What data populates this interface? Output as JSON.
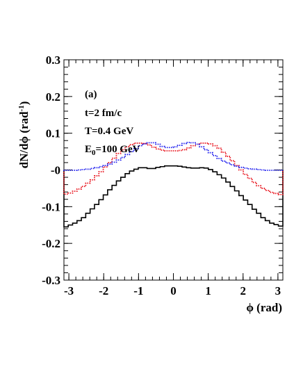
{
  "chart_data": {
    "type": "line",
    "panel_label": "(a)",
    "annotations": {
      "time": "t=2 fm/c",
      "temperature": "T=0.4 GeV",
      "energy_base": "E",
      "energy_sub": "0",
      "energy_rest": "=100 GeV"
    },
    "xlabel": "ϕ (rad)",
    "ylabel_main": "dN/dϕ (rad",
    "ylabel_sup": "-1",
    "ylabel_end": ")",
    "xlim": [
      -3.14159,
      3.14159
    ],
    "ylim": [
      -0.3,
      0.3
    ],
    "x_ticks": [
      -3,
      -2,
      -1,
      0,
      1,
      2,
      3
    ],
    "x_tick_labels": [
      "-3",
      "-2",
      "-1",
      "0",
      "1",
      "2",
      "3"
    ],
    "y_ticks": [
      -0.3,
      -0.2,
      -0.1,
      0,
      0.1,
      0.2,
      0.3
    ],
    "y_tick_labels": [
      "-0.3",
      "-0.2",
      "-0.1",
      "-0",
      "0.1",
      "0.2",
      "0.3"
    ],
    "x": [
      -3.0816,
      -2.956,
      -2.8303,
      -2.7046,
      -2.579,
      -2.4533,
      -2.3277,
      -2.202,
      -2.0763,
      -1.9507,
      -1.825,
      -1.6993,
      -1.5737,
      -1.448,
      -1.3224,
      -1.1967,
      -1.071,
      -0.9454,
      -0.8197,
      -0.694,
      -0.5684,
      -0.4427,
      -0.3171,
      -0.1914,
      -0.0657,
      0.0599,
      0.1856,
      0.3113,
      0.4369,
      0.5626,
      0.6882,
      0.8139,
      0.9396,
      1.0652,
      1.1909,
      1.3166,
      1.4422,
      1.5679,
      1.6935,
      1.8192,
      1.9449,
      2.0705,
      2.1962,
      2.3219,
      2.4475,
      2.5732,
      2.6988,
      2.8245,
      2.9502,
      3.0758
    ],
    "series": [
      {
        "color": "#000000",
        "style": "solid",
        "values": [
          -0.155,
          -0.15,
          -0.145,
          -0.138,
          -0.13,
          -0.118,
          -0.106,
          -0.094,
          -0.081,
          -0.068,
          -0.054,
          -0.042,
          -0.03,
          -0.02,
          -0.01,
          -0.003,
          0.002,
          0.006,
          0.006,
          0.004,
          0.004,
          0.007,
          0.009,
          0.011,
          0.011,
          0.011,
          0.01,
          0.008,
          0.006,
          0.005,
          0.005,
          0.006,
          0.005,
          0.001,
          -0.005,
          -0.013,
          -0.022,
          -0.033,
          -0.045,
          -0.057,
          -0.07,
          -0.082,
          -0.094,
          -0.107,
          -0.118,
          -0.13,
          -0.138,
          -0.145,
          -0.149,
          -0.153
        ]
      },
      {
        "color": "#e8101a",
        "style": "dotted",
        "values": [
          -0.066,
          -0.063,
          -0.058,
          -0.052,
          -0.045,
          -0.036,
          -0.027,
          -0.016,
          -0.005,
          0.008,
          0.02,
          0.032,
          0.045,
          0.055,
          0.063,
          0.069,
          0.073,
          0.073,
          0.072,
          0.068,
          0.062,
          0.057,
          0.054,
          0.052,
          0.052,
          0.052,
          0.053,
          0.055,
          0.06,
          0.066,
          0.07,
          0.073,
          0.073,
          0.071,
          0.066,
          0.059,
          0.048,
          0.037,
          0.025,
          0.012,
          0.0,
          -0.012,
          -0.023,
          -0.034,
          -0.043,
          -0.05,
          -0.056,
          -0.061,
          -0.064,
          -0.067
        ]
      },
      {
        "color": "#1a1aee",
        "style": "dotted",
        "values": [
          -0.001,
          -0.001,
          -0.001,
          0.0,
          0.001,
          0.002,
          0.004,
          0.006,
          0.009,
          0.012,
          0.016,
          0.021,
          0.027,
          0.034,
          0.042,
          0.05,
          0.058,
          0.066,
          0.071,
          0.074,
          0.074,
          0.07,
          0.064,
          0.061,
          0.061,
          0.063,
          0.067,
          0.072,
          0.075,
          0.074,
          0.07,
          0.063,
          0.055,
          0.047,
          0.039,
          0.031,
          0.024,
          0.019,
          0.014,
          0.01,
          0.007,
          0.005,
          0.003,
          0.002,
          0.001,
          0.0,
          -0.001,
          -0.001,
          -0.001,
          -0.001
        ]
      }
    ]
  }
}
